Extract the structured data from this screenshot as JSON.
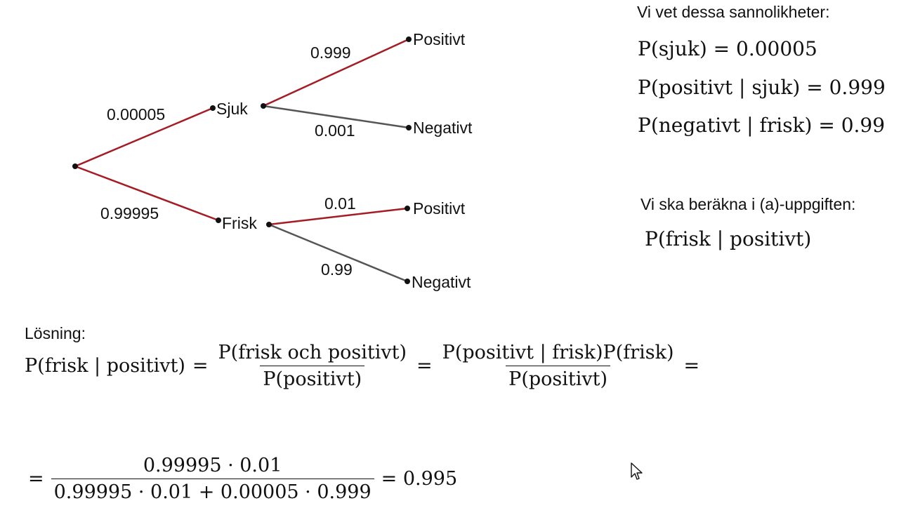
{
  "tree": {
    "nodes": {
      "sjuk": "Sjuk",
      "frisk": "Frisk",
      "sjuk_positive": "Positivt",
      "sjuk_negative": "Negativt",
      "frisk_positive": "Positivt",
      "frisk_negative": "Negativt"
    },
    "edges": {
      "root_sjuk": "0.00005",
      "root_frisk": "0.99995",
      "sjuk_positive": "0.999",
      "sjuk_negative": "0.001",
      "frisk_positive": "0.01",
      "frisk_negative": "0.99"
    },
    "highlight_color": "#a51c24",
    "normal_color": "#555555"
  },
  "known": {
    "heading": "Vi vet dessa sannolikheter:",
    "lines": [
      "P(sjuk) = 0.00005",
      "P(positivt | sjuk) = 0.999",
      "P(negativt | frisk) = 0.99"
    ]
  },
  "task": {
    "heading": "Vi ska beräkna i (a)-uppgiften:",
    "expression": "P(frisk | positivt)"
  },
  "solution": {
    "heading": "Lösning:",
    "lhs": "P(frisk | positivt)",
    "frac1_num": "P(frisk och positivt)",
    "frac1_den": "P(positivt)",
    "frac2_num": "P(positivt | frisk)P(frisk)",
    "frac2_den": "P(positivt)",
    "eq": "=",
    "frac3_num": "0.99995 · 0.01",
    "frac3_den": "0.99995 · 0.01 + 0.00005 · 0.999",
    "result": "= 0.995"
  }
}
